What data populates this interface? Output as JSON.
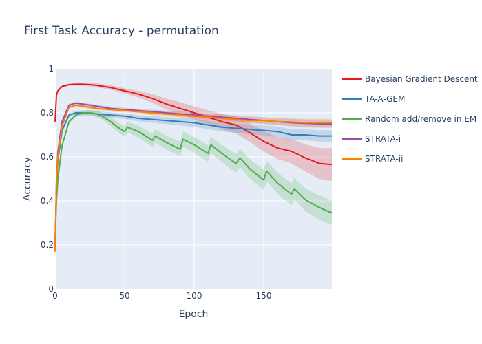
{
  "chart_data": {
    "type": "line",
    "title": "First Task Accuracy - permutation",
    "xlabel": "Epoch",
    "ylabel": "Accuracy",
    "xlim": [
      0,
      199
    ],
    "ylim": [
      0,
      1
    ],
    "x_ticks": [
      0,
      50,
      100,
      150
    ],
    "y_ticks": [
      0,
      0.2,
      0.4,
      0.6,
      0.8,
      1
    ],
    "y_tick_labels": [
      "0",
      "0.2",
      "0.4",
      "0.6",
      "0.8",
      "1"
    ],
    "grid": true,
    "legend_position": "right",
    "bands": true,
    "series": [
      {
        "name": "Bayesian Gradient Descent",
        "color": "#e41a1c",
        "x": [
          0,
          1,
          2,
          5,
          10,
          15,
          20,
          25,
          30,
          40,
          50,
          60,
          70,
          80,
          90,
          100,
          110,
          120,
          130,
          140,
          150,
          160,
          170,
          180,
          190,
          199
        ],
        "y": [
          0.76,
          0.88,
          0.9,
          0.92,
          0.928,
          0.93,
          0.93,
          0.928,
          0.925,
          0.915,
          0.9,
          0.885,
          0.865,
          0.84,
          0.82,
          0.8,
          0.78,
          0.76,
          0.745,
          0.71,
          0.67,
          0.64,
          0.625,
          0.595,
          0.57,
          0.565
        ],
        "band": [
          0.005,
          0.005,
          0.005,
          0.005,
          0.005,
          0.006,
          0.007,
          0.008,
          0.009,
          0.01,
          0.012,
          0.015,
          0.02,
          0.025,
          0.028,
          0.03,
          0.032,
          0.035,
          0.038,
          0.042,
          0.046,
          0.05,
          0.055,
          0.062,
          0.07,
          0.075
        ]
      },
      {
        "name": "TA-A-GEM",
        "color": "#377eb8",
        "x": [
          0,
          1,
          2,
          5,
          10,
          15,
          20,
          25,
          30,
          40,
          50,
          60,
          70,
          80,
          90,
          100,
          110,
          120,
          130,
          140,
          150,
          160,
          170,
          180,
          190,
          199
        ],
        "y": [
          0.2,
          0.45,
          0.58,
          0.72,
          0.79,
          0.8,
          0.8,
          0.8,
          0.795,
          0.79,
          0.785,
          0.775,
          0.77,
          0.765,
          0.76,
          0.755,
          0.745,
          0.735,
          0.73,
          0.725,
          0.72,
          0.715,
          0.7,
          0.7,
          0.695,
          0.695
        ],
        "band": [
          0.01,
          0.01,
          0.01,
          0.01,
          0.01,
          0.01,
          0.01,
          0.01,
          0.012,
          0.012,
          0.013,
          0.014,
          0.015,
          0.016,
          0.017,
          0.018,
          0.019,
          0.02,
          0.021,
          0.022,
          0.023,
          0.024,
          0.025,
          0.025,
          0.026,
          0.026
        ]
      },
      {
        "name": "Random add/remove in EM",
        "color": "#4daf4a",
        "x": [
          0,
          1,
          2,
          5,
          10,
          15,
          20,
          25,
          30,
          35,
          40,
          45,
          50,
          52,
          60,
          70,
          72,
          80,
          90,
          92,
          100,
          110,
          112,
          120,
          130,
          133,
          140,
          150,
          152,
          160,
          170,
          172,
          180,
          190,
          199
        ],
        "y": [
          0.23,
          0.4,
          0.5,
          0.65,
          0.76,
          0.79,
          0.8,
          0.8,
          0.795,
          0.78,
          0.76,
          0.735,
          0.715,
          0.735,
          0.715,
          0.675,
          0.695,
          0.665,
          0.635,
          0.68,
          0.655,
          0.615,
          0.655,
          0.615,
          0.57,
          0.595,
          0.545,
          0.495,
          0.535,
          0.48,
          0.43,
          0.455,
          0.405,
          0.37,
          0.345
        ],
        "band": [
          0.01,
          0.01,
          0.01,
          0.01,
          0.01,
          0.01,
          0.012,
          0.013,
          0.015,
          0.017,
          0.02,
          0.022,
          0.025,
          0.025,
          0.027,
          0.03,
          0.03,
          0.032,
          0.034,
          0.034,
          0.036,
          0.038,
          0.038,
          0.04,
          0.042,
          0.042,
          0.044,
          0.046,
          0.046,
          0.048,
          0.05,
          0.05,
          0.052,
          0.055,
          0.055
        ]
      },
      {
        "name": "STRATA-i",
        "color": "#984ea3",
        "x": [
          0,
          1,
          2,
          5,
          10,
          15,
          20,
          25,
          30,
          40,
          50,
          60,
          70,
          80,
          90,
          100,
          110,
          120,
          130,
          140,
          150,
          160,
          170,
          180,
          190,
          199
        ],
        "y": [
          0.17,
          0.5,
          0.62,
          0.76,
          0.835,
          0.845,
          0.84,
          0.835,
          0.83,
          0.82,
          0.815,
          0.81,
          0.805,
          0.8,
          0.795,
          0.79,
          0.785,
          0.78,
          0.775,
          0.77,
          0.765,
          0.76,
          0.755,
          0.752,
          0.75,
          0.75
        ],
        "band": [
          0.005,
          0.005,
          0.005,
          0.005,
          0.006,
          0.006,
          0.006,
          0.007,
          0.007,
          0.008,
          0.008,
          0.009,
          0.01,
          0.01,
          0.011,
          0.012,
          0.012,
          0.013,
          0.014,
          0.015,
          0.015,
          0.016,
          0.017,
          0.018,
          0.018,
          0.018
        ]
      },
      {
        "name": "STRATA-ii",
        "color": "#ff7f00",
        "x": [
          0,
          1,
          2,
          5,
          10,
          15,
          20,
          25,
          30,
          40,
          50,
          60,
          70,
          80,
          90,
          100,
          110,
          120,
          130,
          140,
          150,
          160,
          170,
          180,
          190,
          199
        ],
        "y": [
          0.17,
          0.48,
          0.6,
          0.74,
          0.825,
          0.835,
          0.83,
          0.825,
          0.82,
          0.815,
          0.81,
          0.805,
          0.8,
          0.795,
          0.79,
          0.785,
          0.78,
          0.775,
          0.77,
          0.765,
          0.765,
          0.76,
          0.758,
          0.755,
          0.755,
          0.755
        ],
        "band": [
          0.005,
          0.005,
          0.005,
          0.005,
          0.006,
          0.006,
          0.006,
          0.007,
          0.007,
          0.008,
          0.008,
          0.009,
          0.01,
          0.01,
          0.011,
          0.012,
          0.012,
          0.013,
          0.014,
          0.015,
          0.015,
          0.016,
          0.017,
          0.018,
          0.018,
          0.018
        ]
      }
    ]
  },
  "colors": {
    "plot_background": "#e5ecf6",
    "gridline": "#ffffff",
    "text": "#2a3f5f"
  }
}
